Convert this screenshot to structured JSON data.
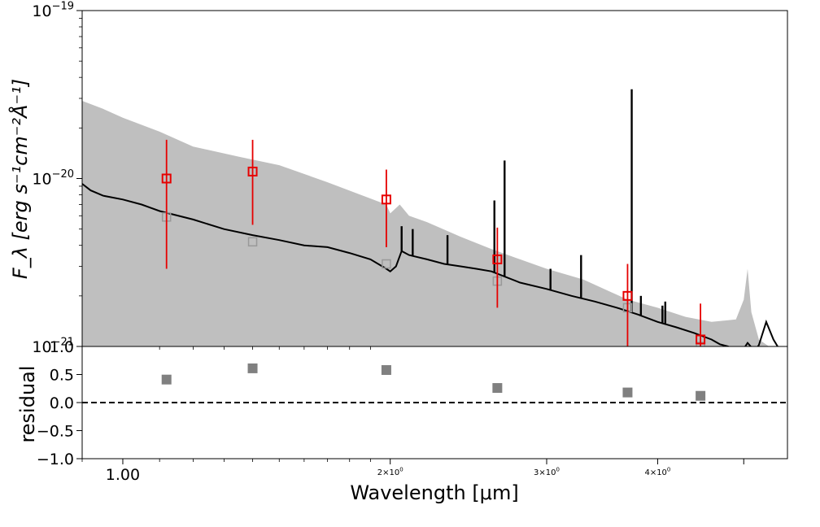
{
  "chart_data": [
    {
      "type": "line",
      "panel": "spectrum",
      "xscale": "log",
      "yscale": "log",
      "xlim": [
        0.9,
        5.6
      ],
      "ylim": [
        1e-21,
        1e-19
      ],
      "ylabel": "F_λ [erg s⁻¹cm⁻²Å⁻¹]",
      "ytick_labels": [
        {
          "value": 1e-19,
          "base": "10",
          "exp": "−19"
        },
        {
          "value": 1e-20,
          "base": "10",
          "exp": "−20"
        },
        {
          "value": 1e-21,
          "base": "10",
          "exp": "−21"
        }
      ],
      "envelope": {
        "color": "#bfbfbf",
        "x": [
          0.9,
          0.95,
          1.0,
          1.1,
          1.2,
          1.35,
          1.5,
          1.7,
          1.98,
          2.0,
          2.05,
          2.1,
          2.2,
          2.4,
          2.6,
          2.8,
          3.0,
          3.3,
          3.55,
          3.7,
          4.0,
          4.3,
          4.6,
          4.9,
          5.0,
          5.05,
          5.1,
          5.2,
          5.4,
          5.6
        ],
        "upper": [
          2.9e-20,
          2.6e-20,
          2.3e-20,
          1.9e-20,
          1.55e-20,
          1.35e-20,
          1.2e-20,
          9.5e-21,
          7e-21,
          6.2e-21,
          7e-21,
          6e-21,
          5.5e-21,
          4.5e-21,
          3.8e-21,
          3.3e-21,
          2.9e-21,
          2.5e-21,
          2.1e-21,
          1.9e-21,
          1.7e-21,
          1.5e-21,
          1.4e-21,
          1.45e-21,
          1.9e-21,
          2.9e-21,
          1.6e-21,
          1.1e-21,
          9.6e-22,
          9.2e-22
        ]
      },
      "model": {
        "color": "#000000",
        "x": [
          0.9,
          0.92,
          0.95,
          1.0,
          1.05,
          1.1,
          1.2,
          1.3,
          1.4,
          1.5,
          1.6,
          1.7,
          1.8,
          1.9,
          1.98,
          2.0,
          2.03,
          2.06,
          2.1,
          2.2,
          2.3,
          2.4,
          2.5,
          2.6,
          2.8,
          3.0,
          3.2,
          3.4,
          3.6,
          3.8,
          4.0,
          4.2,
          4.4,
          4.6,
          4.7,
          4.8,
          4.9,
          5.0,
          5.05,
          5.1,
          5.15,
          5.2,
          5.3,
          5.4,
          5.6
        ],
        "y": [
          9.3e-21,
          8.5e-21,
          7.9e-21,
          7.5e-21,
          7e-21,
          6.4e-21,
          5.7e-21,
          5e-21,
          4.6e-21,
          4.3e-21,
          4e-21,
          3.9e-21,
          3.6e-21,
          3.3e-21,
          2.9e-21,
          2.8e-21,
          3e-21,
          3.7e-21,
          3.5e-21,
          3.3e-21,
          3.1e-21,
          3e-21,
          2.9e-21,
          2.8e-21,
          2.4e-21,
          2.2e-21,
          2e-21,
          1.85e-21,
          1.7e-21,
          1.55e-21,
          1.4e-21,
          1.3e-21,
          1.2e-21,
          1.1e-21,
          1.03e-21,
          1e-21,
          9.6e-22,
          9.7e-22,
          1.05e-21,
          9.9e-22,
          9.5e-22,
          1.02e-21,
          1.4e-21,
          1.1e-21,
          8e-22
        ]
      },
      "model_lines": [
        {
          "x": 2.06,
          "peak": 5.2e-21
        },
        {
          "x": 2.12,
          "peak": 5e-21
        },
        {
          "x": 2.32,
          "peak": 4.6e-21
        },
        {
          "x": 2.62,
          "peak": 7.4e-21
        },
        {
          "x": 2.69,
          "peak": 1.28e-20
        },
        {
          "x": 3.03,
          "peak": 2.9e-21
        },
        {
          "x": 3.28,
          "peak": 3.5e-21
        },
        {
          "x": 3.74,
          "peak": 3.4e-20
        },
        {
          "x": 3.83,
          "peak": 2e-21
        },
        {
          "x": 4.05,
          "peak": 1.75e-21
        },
        {
          "x": 4.08,
          "peak": 1.85e-21
        }
      ],
      "series": [
        {
          "kind": "observed",
          "color": "#e60000",
          "marker": "square-open",
          "x": [
            1.12,
            1.4,
            1.98,
            2.64,
            3.7,
            4.47
          ],
          "y": [
            1e-20,
            1.1e-20,
            7.5e-21,
            3.3e-21,
            2e-21,
            1.1e-21
          ],
          "yerr_low": [
            2.9e-21,
            5.3e-21,
            3.9e-21,
            1.7e-21,
            1e-21,
            9.5e-22
          ],
          "yerr_high": [
            1.7e-20,
            1.7e-20,
            1.13e-20,
            5.1e-21,
            3.1e-21,
            1.8e-21
          ]
        },
        {
          "kind": "model-photometry",
          "color": "#999999",
          "marker": "square-open",
          "x": [
            1.12,
            1.4,
            1.98,
            2.64,
            3.7,
            4.47
          ],
          "y": [
            5.9e-21,
            4.2e-21,
            3.1e-21,
            2.45e-21,
            1.7e-21,
            1e-21
          ]
        }
      ]
    },
    {
      "type": "scatter",
      "panel": "residual",
      "xscale": "log",
      "xlim": [
        0.9,
        5.6
      ],
      "ylim": [
        -1.0,
        1.0
      ],
      "ylabel": "residual",
      "xlabel": "Wavelength [μm]",
      "ytick_labels": [
        "1.0",
        "0.5",
        "0.0",
        "−0.5",
        "−1.0"
      ],
      "ytick_values": [
        1.0,
        0.5,
        0.0,
        -0.5,
        -1.0
      ],
      "xtick_labels": [
        {
          "value": 1.0,
          "text": "1.00",
          "base": "",
          "exp": ""
        },
        {
          "value": 2.0,
          "text": "",
          "base": "2×10",
          "exp": "0"
        },
        {
          "value": 3.0,
          "text": "",
          "base": "3×10",
          "exp": "0"
        },
        {
          "value": 4.0,
          "text": "",
          "base": "4×10",
          "exp": "0"
        }
      ],
      "zero_line": {
        "y": 0.0,
        "style": "dashed"
      },
      "series": [
        {
          "color": "#808080",
          "marker": "square-filled",
          "x": [
            1.12,
            1.4,
            1.98,
            2.64,
            3.7,
            4.47
          ],
          "y": [
            0.41,
            0.61,
            0.58,
            0.26,
            0.18,
            0.12
          ]
        }
      ]
    }
  ]
}
